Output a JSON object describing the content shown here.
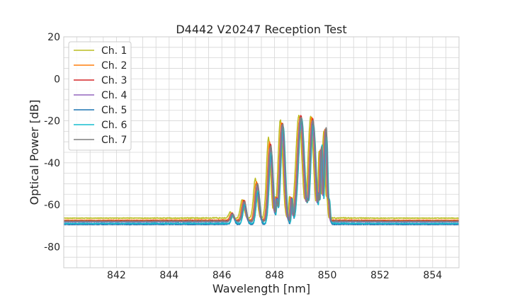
{
  "chart_data": {
    "type": "line",
    "title": "D4442 V20247 Reception Test",
    "xlabel": "Wavelength [nm]",
    "ylabel": "Optical Power [dB]",
    "xlim": [
      840.0,
      855.0
    ],
    "ylim": [
      -90,
      20
    ],
    "xticks": [
      842,
      844,
      846,
      848,
      850,
      852,
      854
    ],
    "yticks": [
      20,
      0,
      -20,
      -40,
      -60,
      -80
    ],
    "xminor_step": 0.5,
    "yminor_step": 5,
    "grid": true,
    "legend_position": "upper-left",
    "series": [
      {
        "name": "Ch. 1",
        "color": "#bcbd22",
        "baseline": -66.5,
        "offset": -0.08,
        "peaks": [
          -63.5,
          -57.5,
          -47.5,
          -28,
          -19.5,
          -17.5,
          -18,
          -25,
          -31
        ]
      },
      {
        "name": "Ch. 2",
        "color": "#ff7f0e",
        "baseline": -67.5,
        "offset": -0.04,
        "peaks": [
          -64,
          -58,
          -49,
          -30,
          -21,
          -18.5,
          -18.5,
          -24,
          -30
        ]
      },
      {
        "name": "Ch. 3",
        "color": "#d62728",
        "baseline": -67.8,
        "offset": 0.0,
        "peaks": [
          -64,
          -58,
          -50,
          -31,
          -21,
          -17.5,
          -19,
          -23.5,
          -29
        ]
      },
      {
        "name": "Ch. 4",
        "color": "#9467bd",
        "baseline": -68.3,
        "offset": -0.02,
        "peaks": [
          -64.5,
          -59,
          -51,
          -33,
          -22,
          -19,
          -20.5,
          -24,
          -30
        ]
      },
      {
        "name": "Ch. 5",
        "color": "#1f77b4",
        "baseline": -69.5,
        "offset": 0.02,
        "peaks": [
          -65,
          -60,
          -54,
          -36,
          -23,
          -20,
          -21.5,
          -26,
          -28
        ]
      },
      {
        "name": "Ch. 6",
        "color": "#17becf",
        "baseline": -69.0,
        "offset": 0.03,
        "peaks": [
          -65,
          -60,
          -53,
          -35,
          -22.5,
          -19,
          -22,
          -27,
          -27
        ]
      },
      {
        "name": "Ch. 7",
        "color": "#7f7f7f",
        "baseline": -68.0,
        "offset": 0.01,
        "peaks": [
          -64.5,
          -58.5,
          -50,
          -32,
          -21.5,
          -18.5,
          -20,
          -23,
          -28
        ]
      }
    ],
    "peak_centers": [
      846.4,
      846.85,
      847.35,
      847.85,
      848.3,
      849.0,
      849.45,
      849.95,
      849.75
    ]
  }
}
